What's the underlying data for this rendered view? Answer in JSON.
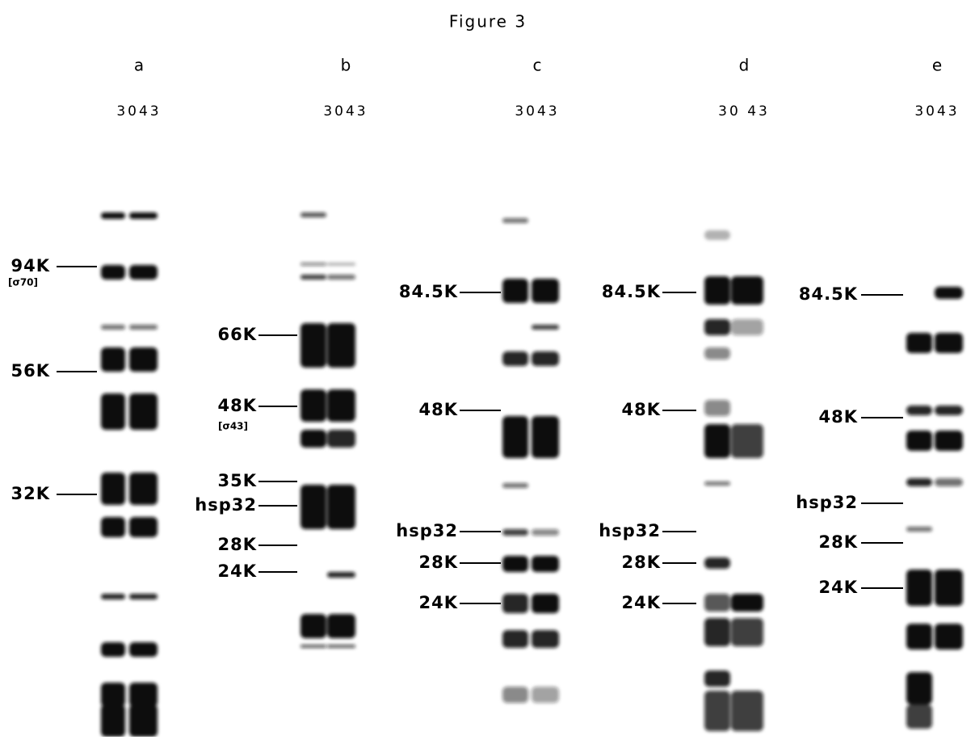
{
  "title": "Figure 3",
  "panels": [
    {
      "label": "a",
      "lanes": "3043",
      "markers": [
        {
          "label": "94K",
          "note": "[σ70]"
        },
        {
          "label": "56K"
        },
        {
          "label": "32K"
        }
      ]
    },
    {
      "label": "b",
      "lanes": "3043",
      "markers": [
        {
          "label": "66K"
        },
        {
          "label": "48K",
          "note": "[σ43]"
        },
        {
          "label": "35K"
        },
        {
          "label": "hsp32"
        },
        {
          "label": "28K"
        },
        {
          "label": "24K"
        }
      ]
    },
    {
      "label": "c",
      "lanes": "3043",
      "markers": [
        {
          "label": "84.5K"
        },
        {
          "label": "48K"
        },
        {
          "label": "hsp32"
        },
        {
          "label": "28K"
        },
        {
          "label": "24K"
        }
      ]
    },
    {
      "label": "d",
      "lanes": "30 43",
      "markers": [
        {
          "label": "84.5K"
        },
        {
          "label": "48K"
        },
        {
          "label": "hsp32"
        },
        {
          "label": "28K"
        },
        {
          "label": "24K"
        }
      ]
    },
    {
      "label": "e",
      "lanes": "3043",
      "markers": [
        {
          "label": "84.5K"
        },
        {
          "label": "48K"
        },
        {
          "label": "hsp32"
        },
        {
          "label": "28K"
        },
        {
          "label": "24K"
        }
      ]
    }
  ]
}
